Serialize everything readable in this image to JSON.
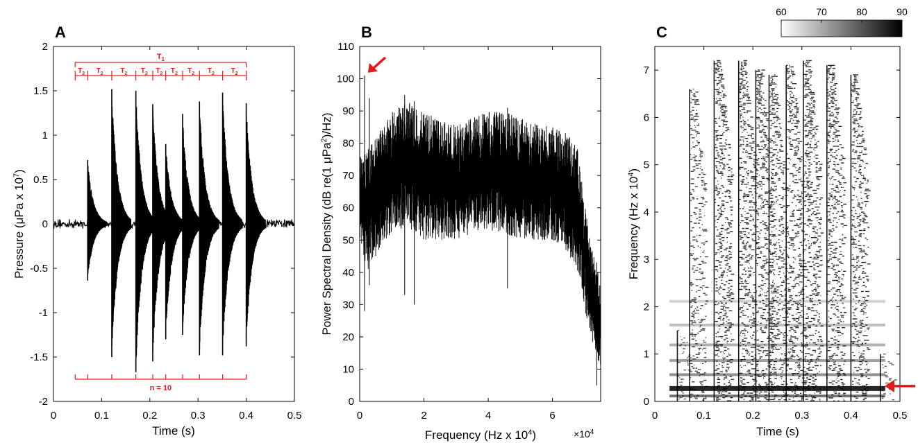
{
  "chart_data": [
    {
      "panel": "A",
      "type": "line",
      "xlabel": "Time (s)",
      "ylabel": "Pressure (μPa x 10",
      "ylabel_exponent": "7",
      "ylabel_suffix": ")",
      "xlim": [
        0,
        0.5
      ],
      "ylim": [
        -2,
        2
      ],
      "xticks": [
        0,
        0.1,
        0.2,
        0.3,
        0.4,
        0.5
      ],
      "xtick_labels": [
        "0",
        "0.1",
        "0.2",
        "0.3",
        "0.4",
        "0.5"
      ],
      "yticks": [
        -2,
        -1.5,
        -1,
        -0.5,
        0,
        0.5,
        1,
        1.5,
        2
      ],
      "ytick_labels": [
        "-2",
        "-1.5",
        "-1",
        "-0.5",
        "0",
        "0.5",
        "1",
        "1.5",
        "2"
      ],
      "grid": false,
      "series": [
        {
          "color": "#000000",
          "pulses": [
            {
              "t": 0.071,
              "peak": 0.72,
              "trough": -0.64
            },
            {
              "t": 0.121,
              "peak": 1.52,
              "trough": -1.5
            },
            {
              "t": 0.171,
              "peak": 1.5,
              "trough": -1.67
            },
            {
              "t": 0.206,
              "peak": 1.35,
              "trough": -1.55
            },
            {
              "t": 0.233,
              "peak": 0.9,
              "trough": -1.3
            },
            {
              "t": 0.268,
              "peak": 1.24,
              "trough": -1.25
            },
            {
              "t": 0.303,
              "peak": 1.38,
              "trough": -1.48
            },
            {
              "t": 0.351,
              "peak": 1.48,
              "trough": -1.48
            },
            {
              "t": 0.4,
              "peak": 1.36,
              "trough": -1.38
            }
          ],
          "background_level": 0.04
        }
      ],
      "annotations": {
        "color": "#e31a1c",
        "t1_label": "T",
        "t1_sub": "1",
        "t1_range": [
          0.045,
          0.4
        ],
        "t2_label": "T",
        "t2_sub": "2",
        "t2_ticks": [
          0.045,
          0.071,
          0.121,
          0.171,
          0.206,
          0.233,
          0.268,
          0.303,
          0.351,
          0.4
        ],
        "n_label": "n = 10",
        "n_ticks": [
          0.045,
          0.071,
          0.121,
          0.171,
          0.206,
          0.233,
          0.268,
          0.303,
          0.351,
          0.4
        ]
      }
    },
    {
      "panel": "B",
      "type": "line",
      "xlabel": "Frequency (Hz x 10",
      "xlabel_exponent": "4",
      "xlabel_suffix": ")",
      "axis_multiplier": "×10",
      "axis_multiplier_exponent": "4",
      "ylabel": "Power Spectral Density (dB re(1 μPa",
      "ylabel_exponent": "2",
      "ylabel_suffix": ")/Hz)",
      "xlim": [
        0,
        7.5
      ],
      "ylim": [
        0,
        110
      ],
      "xticks": [
        0,
        2,
        4,
        6
      ],
      "xtick_labels": [
        "0",
        "2",
        "4",
        "6"
      ],
      "yticks": [
        0,
        10,
        20,
        30,
        40,
        50,
        60,
        70,
        80,
        90,
        100,
        110
      ],
      "ytick_labels": [
        "0",
        "10",
        "20",
        "30",
        "40",
        "50",
        "60",
        "70",
        "80",
        "90",
        "100",
        "110"
      ],
      "grid": false,
      "series": [
        {
          "color": "#000000",
          "x": [
            0,
            0.25,
            0.5,
            1,
            1.5,
            2,
            2.5,
            3,
            3.5,
            4,
            4.5,
            5,
            5.5,
            6,
            6.5,
            6.8,
            7,
            7.2,
            7.5
          ],
          "upper": [
            76,
            78,
            82,
            90,
            93,
            90,
            87,
            86,
            88,
            90,
            90,
            88,
            86,
            85,
            83,
            78,
            62,
            48,
            38
          ],
          "lower": [
            50,
            40,
            45,
            52,
            54,
            50,
            50,
            50,
            52,
            53,
            52,
            50,
            50,
            50,
            45,
            40,
            28,
            20,
            10
          ],
          "spikes": [
            {
              "x": 0.15,
              "value": 101,
              "low": 28
            },
            {
              "x": 0.3,
              "value": 94,
              "low": 36
            },
            {
              "x": 1.4,
              "value": 95,
              "low": 33
            },
            {
              "x": 1.7,
              "value": 93,
              "low": 30
            },
            {
              "x": 4.6,
              "value": 91,
              "low": 35
            },
            {
              "x": 7.38,
              "value": 43,
              "low": 5
            }
          ]
        }
      ],
      "annotations": {
        "arrow_color": "#e31a1c",
        "arrow_at": {
          "x": 0.15,
          "y": 101
        }
      }
    },
    {
      "panel": "C",
      "type": "heatmap",
      "xlabel": "Time (s)",
      "ylabel": "Frequency (Hz x 10",
      "ylabel_exponent": "4",
      "ylabel_suffix": ")",
      "xlim": [
        0,
        0.5
      ],
      "ylim": [
        0,
        7.5
      ],
      "xticks": [
        0,
        0.1,
        0.2,
        0.3,
        0.4,
        0.5
      ],
      "xtick_labels": [
        "0",
        "0.1",
        "0.2",
        "0.3",
        "0.4",
        "0.5"
      ],
      "yticks": [
        0,
        1,
        2,
        3,
        4,
        5,
        6,
        7
      ],
      "ytick_labels": [
        "0",
        "1",
        "2",
        "3",
        "4",
        "5",
        "6",
        "7"
      ],
      "grid": false,
      "colorbar": {
        "range": [
          60,
          90
        ],
        "ticks": [
          60,
          70,
          80,
          90
        ],
        "tick_labels": [
          "60",
          "70",
          "80",
          "90"
        ],
        "colormap": "white-to-black",
        "placement": "top-right"
      },
      "pulses": [
        {
          "t": 0.046,
          "top": 1.5,
          "strength": 0.35
        },
        {
          "t": 0.071,
          "top": 6.6,
          "strength": 0.6
        },
        {
          "t": 0.121,
          "top": 7.2,
          "strength": 0.85
        },
        {
          "t": 0.171,
          "top": 7.2,
          "strength": 0.85
        },
        {
          "t": 0.206,
          "top": 7.0,
          "strength": 0.8
        },
        {
          "t": 0.233,
          "top": 6.9,
          "strength": 0.75
        },
        {
          "t": 0.268,
          "top": 7.1,
          "strength": 0.8
        },
        {
          "t": 0.303,
          "top": 7.2,
          "strength": 0.85
        },
        {
          "t": 0.351,
          "top": 7.1,
          "strength": 0.85
        },
        {
          "t": 0.4,
          "top": 6.9,
          "strength": 0.8
        },
        {
          "t": 0.46,
          "top": 1.0,
          "strength": 0.3
        }
      ],
      "harmonics": [
        0.1,
        0.28,
        0.55,
        0.85,
        1.18,
        1.6,
        2.1
      ],
      "annotations": {
        "arrow_color": "#e31a1c",
        "arrow_at": {
          "x": 0.5,
          "y": 0.28
        }
      }
    }
  ],
  "panel_labels": [
    "A",
    "B",
    "C"
  ]
}
